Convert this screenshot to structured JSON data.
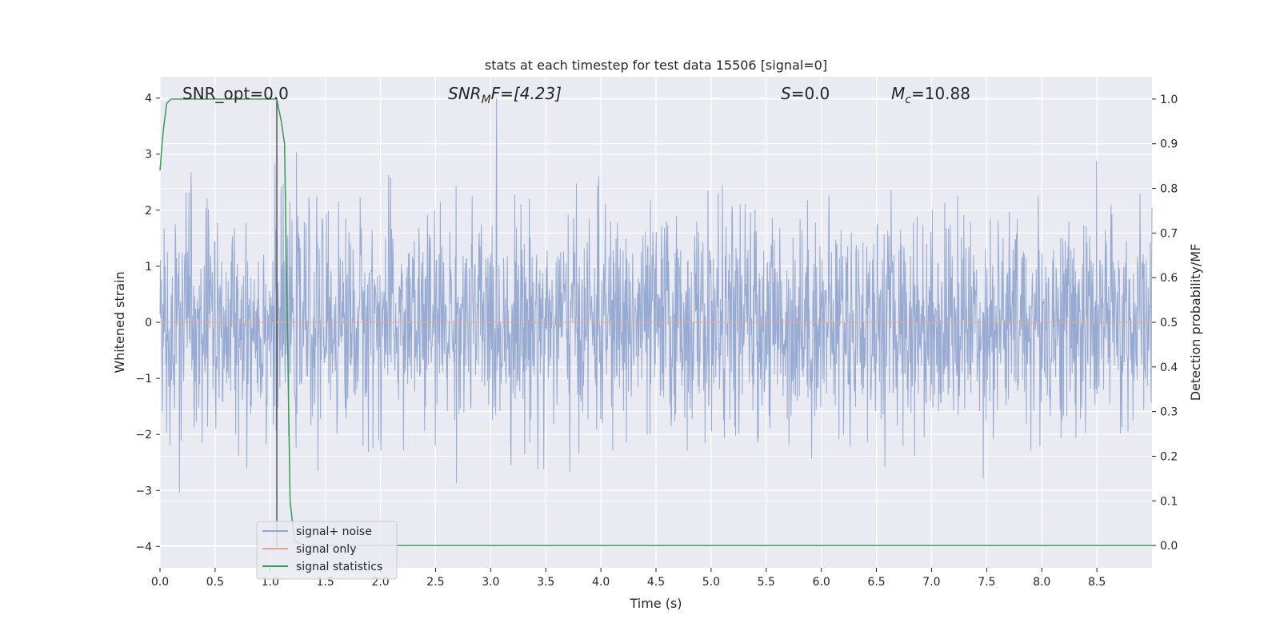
{
  "chart_data": {
    "type": "line",
    "title": "stats at each timestep for test data 15506 [signal=0]",
    "xlabel": "Time (s)",
    "ylabel": "Whitened strain",
    "y2label": "Detection probability/MF",
    "xlim": [
      0.0,
      9.0
    ],
    "ylim": [
      -4.38,
      4.38
    ],
    "y2lim": [
      -0.05,
      1.05
    ],
    "x_ticks": [
      "0.0",
      "0.5",
      "1.0",
      "1.5",
      "2.0",
      "2.5",
      "3.0",
      "3.5",
      "4.0",
      "4.5",
      "5.0",
      "5.5",
      "6.0",
      "6.5",
      "7.0",
      "7.5",
      "8.0",
      "8.5"
    ],
    "y_ticks": [
      "4",
      "3",
      "2",
      "1",
      "0",
      "−1",
      "−2",
      "−3",
      "−4"
    ],
    "y2_ticks": [
      "1.0",
      "0.9",
      "0.8",
      "0.7",
      "0.6",
      "0.5",
      "0.4",
      "0.3",
      "0.2",
      "0.1",
      "0.0"
    ],
    "grid": true,
    "legend_placement": "lower-left",
    "annotations": {
      "snr_opt": "SNR_opt=0.0",
      "snr_mf_pre": "SNR",
      "snr_mf_sub": "M",
      "snr_mf_post": "F=[4.23]",
      "s_var": "S",
      "s_val": "=0.0",
      "mc_var": "M",
      "mc_sub": "c",
      "mc_val": "=10.88"
    },
    "vertical_marker_x": 1.06,
    "series": [
      {
        "name": "signal+ noise",
        "color": "#92a6cf",
        "axis": "left",
        "description_values": {
          "x_range": [
            0.0,
            9.0
          ],
          "typical_range": [
            -2.0,
            2.6
          ],
          "extremes": [
            -4.0,
            4.0
          ]
        }
      },
      {
        "name": "signal only",
        "color": "#e8a488",
        "axis": "left",
        "x": [
          0.0,
          9.0
        ],
        "y": [
          0.0,
          0.0
        ]
      },
      {
        "name": "signal statistics",
        "color": "#3a9a55",
        "axis": "right",
        "x": [
          0.0,
          0.03,
          0.06,
          0.1,
          0.2,
          0.5,
          0.8,
          1.0,
          1.06,
          1.1,
          1.13,
          1.18,
          1.22,
          1.3,
          2.0,
          3.0,
          4.0,
          5.0,
          6.0,
          7.0,
          8.0,
          8.5,
          9.0
        ],
        "y": [
          0.84,
          0.93,
          0.99,
          1.0,
          1.0,
          1.0,
          1.0,
          1.0,
          1.0,
          0.95,
          0.9,
          0.1,
          0.01,
          0.0,
          0.0,
          0.0,
          0.0,
          0.0,
          0.0,
          0.0,
          0.0,
          0.0,
          0.0
        ]
      }
    ]
  }
}
